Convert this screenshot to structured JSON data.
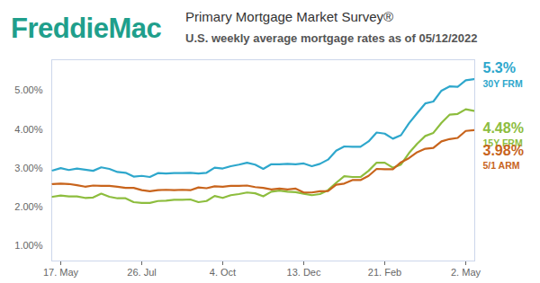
{
  "chart_data": {
    "type": "line",
    "logo": "FreddieMac",
    "title": "Primary Mortgage Market Survey®",
    "subtitle": "U.S. weekly average mortgage rates as of 05/12/2022",
    "categories": [
      null,
      "17. May",
      null,
      null,
      null,
      null,
      null,
      null,
      null,
      null,
      null,
      "26. Jul",
      null,
      null,
      null,
      null,
      null,
      null,
      null,
      null,
      null,
      "4. Oct",
      null,
      null,
      null,
      null,
      null,
      null,
      null,
      null,
      null,
      "13. Dec",
      null,
      null,
      null,
      null,
      null,
      null,
      null,
      null,
      null,
      "21. Feb",
      null,
      null,
      null,
      null,
      null,
      null,
      null,
      null,
      null,
      "2. May",
      null
    ],
    "series": [
      {
        "name": "30Y FRM",
        "color": "#2ea7cc",
        "values": [
          2.94,
          3.0,
          2.95,
          2.99,
          2.96,
          2.93,
          3.02,
          2.98,
          2.9,
          2.88,
          2.78,
          2.8,
          2.77,
          2.87,
          2.86,
          2.87,
          2.87,
          2.88,
          2.86,
          2.88,
          3.01,
          2.99,
          3.05,
          3.09,
          3.14,
          3.09,
          2.98,
          3.1,
          3.1,
          3.11,
          3.1,
          3.12,
          3.05,
          3.11,
          3.22,
          3.45,
          3.56,
          3.55,
          3.55,
          3.69,
          3.92,
          3.89,
          3.76,
          3.85,
          4.16,
          4.42,
          4.67,
          4.72,
          5.0,
          5.11,
          5.1,
          5.27,
          5.3
        ],
        "value_labels": [
          null,
          null,
          null,
          null,
          null,
          null,
          null,
          null,
          null,
          null,
          null,
          null,
          null,
          null,
          null,
          null,
          null,
          null,
          null,
          null,
          null,
          null,
          null,
          null,
          null,
          null,
          null,
          null,
          null,
          null,
          null,
          null,
          null,
          null,
          null,
          null,
          null,
          null,
          null,
          null,
          null,
          null,
          null,
          null,
          null,
          null,
          null,
          null,
          null,
          null,
          null,
          null,
          "5.3%"
        ]
      },
      {
        "name": "15Y FRM",
        "color": "#8dbd3e",
        "values": [
          2.26,
          2.29,
          2.27,
          2.27,
          2.23,
          2.24,
          2.34,
          2.26,
          2.22,
          2.22,
          2.12,
          2.1,
          2.1,
          2.15,
          2.16,
          2.18,
          2.18,
          2.19,
          2.12,
          2.15,
          2.28,
          2.23,
          2.3,
          2.33,
          2.37,
          2.35,
          2.27,
          2.39,
          2.42,
          2.39,
          2.38,
          2.34,
          2.3,
          2.33,
          2.43,
          2.62,
          2.79,
          2.77,
          2.77,
          2.93,
          3.14,
          3.14,
          3.01,
          3.09,
          3.39,
          3.63,
          3.83,
          3.91,
          4.17,
          4.38,
          4.4,
          4.52,
          4.48
        ],
        "value_labels": [
          null,
          null,
          null,
          null,
          null,
          null,
          null,
          null,
          null,
          null,
          null,
          null,
          null,
          null,
          null,
          null,
          null,
          null,
          null,
          null,
          null,
          null,
          null,
          null,
          null,
          null,
          null,
          null,
          null,
          null,
          null,
          null,
          null,
          null,
          null,
          null,
          null,
          null,
          null,
          null,
          null,
          null,
          null,
          null,
          null,
          null,
          null,
          null,
          null,
          null,
          null,
          null,
          "4.48%"
        ]
      },
      {
        "name": "5/1 ARM",
        "color": "#c8641c",
        "values": [
          2.59,
          2.6,
          2.59,
          2.56,
          2.52,
          2.55,
          2.54,
          2.54,
          2.52,
          2.49,
          2.49,
          2.43,
          2.4,
          2.43,
          2.44,
          2.43,
          2.44,
          2.43,
          2.5,
          2.48,
          2.53,
          2.52,
          2.54,
          2.54,
          2.55,
          2.51,
          2.49,
          2.45,
          2.47,
          2.45,
          2.47,
          2.37,
          2.37,
          2.4,
          2.41,
          2.57,
          2.6,
          2.69,
          2.69,
          2.8,
          2.98,
          2.97,
          2.97,
          3.15,
          3.26,
          3.41,
          3.5,
          3.52,
          3.69,
          3.75,
          3.78,
          3.96,
          3.98
        ],
        "value_labels": [
          null,
          null,
          null,
          null,
          null,
          null,
          null,
          null,
          null,
          null,
          null,
          null,
          null,
          null,
          null,
          null,
          null,
          null,
          null,
          null,
          null,
          null,
          null,
          null,
          null,
          null,
          null,
          null,
          null,
          null,
          null,
          null,
          null,
          null,
          null,
          null,
          null,
          null,
          null,
          null,
          null,
          null,
          null,
          null,
          null,
          null,
          null,
          null,
          null,
          null,
          null,
          null,
          "3.98%"
        ]
      }
    ],
    "ylim": [
      0.6,
      5.8
    ],
    "yticks": [
      {
        "value": 1,
        "label": "1.00%"
      },
      {
        "value": 2,
        "label": "2.00%"
      },
      {
        "value": 3,
        "label": "3.00%"
      },
      {
        "value": 4,
        "label": "4.00%"
      },
      {
        "value": 5,
        "label": "5.00%"
      }
    ],
    "grid": false
  }
}
